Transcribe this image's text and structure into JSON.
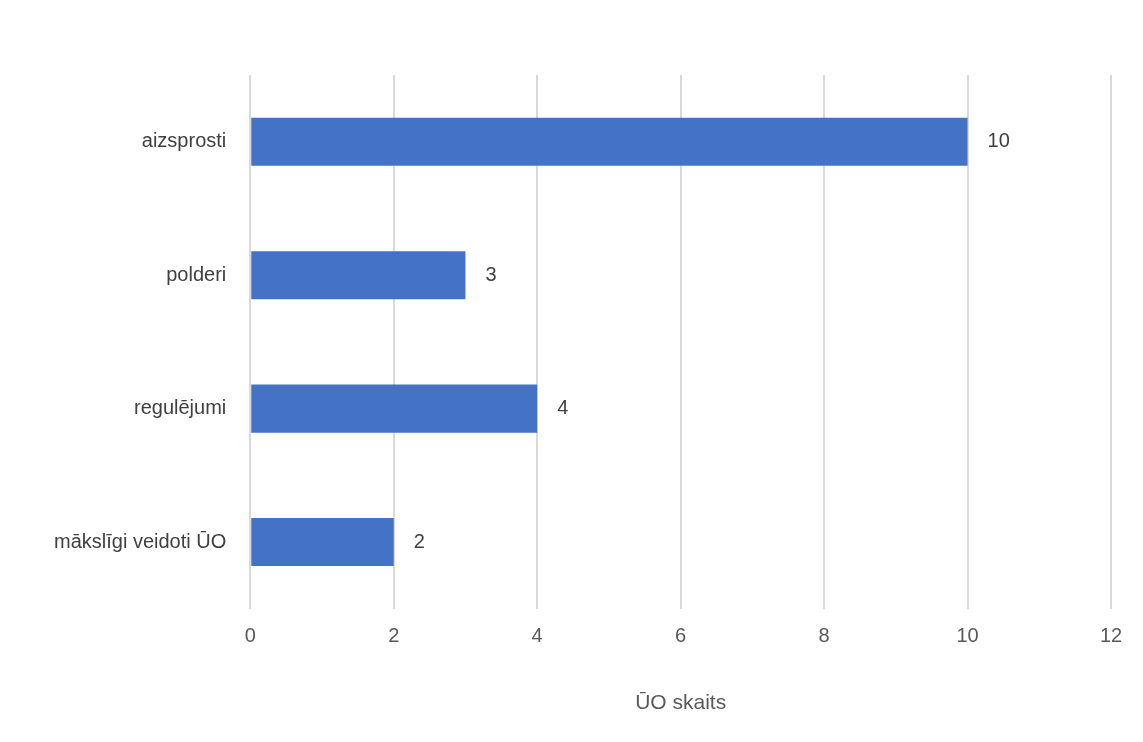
{
  "chart_data": {
    "type": "bar",
    "orientation": "horizontal",
    "xlabel": "ŪO skaits",
    "categories": [
      "aizsprosti",
      "polderi",
      "regulējumi",
      "mākslīgi veidoti ŪO"
    ],
    "values": [
      10,
      3,
      4,
      2
    ],
    "color": "#4472c4",
    "xlim": [
      0,
      12
    ],
    "xticks": [
      0,
      2,
      4,
      6,
      8,
      10,
      12
    ],
    "grid": "x",
    "data_labels": true,
    "legend": false
  }
}
